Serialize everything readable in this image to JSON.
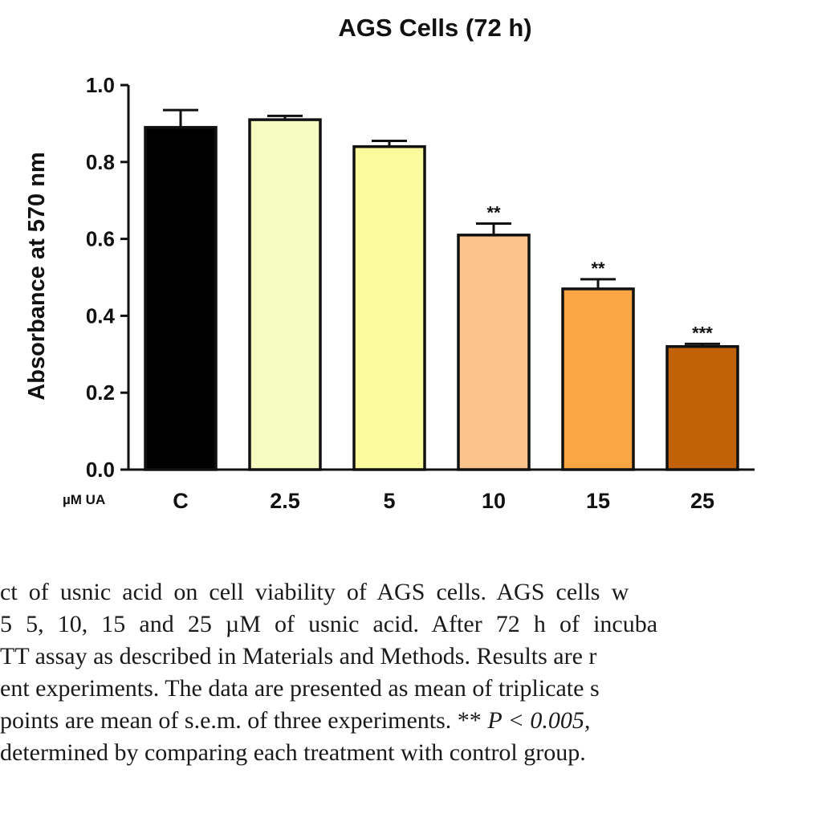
{
  "chart_data": {
    "type": "bar",
    "title": "AGS Cells (72 h)",
    "ylabel": "Absorbance at 570 nm",
    "xlabel_prefix": "µM UA",
    "ylim": [
      0,
      1.0
    ],
    "yticks": [
      "0.0",
      "0.2",
      "0.4",
      "0.6",
      "0.8",
      "1.0"
    ],
    "ytick_values": [
      0,
      0.2,
      0.4,
      0.6,
      0.8,
      1.0
    ],
    "categories": [
      "C",
      "2.5",
      "5",
      "10",
      "15",
      "25"
    ],
    "values": [
      0.89,
      0.91,
      0.84,
      0.61,
      0.47,
      0.32
    ],
    "errors": [
      0.045,
      0.01,
      0.015,
      0.03,
      0.025,
      0.007
    ],
    "significance": [
      "",
      "",
      "",
      "**",
      "**",
      "***"
    ],
    "colors": [
      "#000000",
      "#f6fbc2",
      "#fbfb9d",
      "#fcc48d",
      "#fba543",
      "#c26207"
    ],
    "grid": false
  },
  "caption": {
    "line1": "ct of usnic acid on cell viability of AGS cells. AGS cells w",
    "line2": "5 5, 10, 15 and 25 µM of usnic acid. After 72 h of incuba",
    "line3": "TT assay as described in Materials and Methods. Results are r",
    "line4": "ent experiments. The data are presented as mean of triplicate s",
    "line5a": " points are mean of s.e.m. of three experiments. ** ",
    "line5b": "P < 0.005,",
    "line6": "determined by comparing each treatment with control group."
  }
}
